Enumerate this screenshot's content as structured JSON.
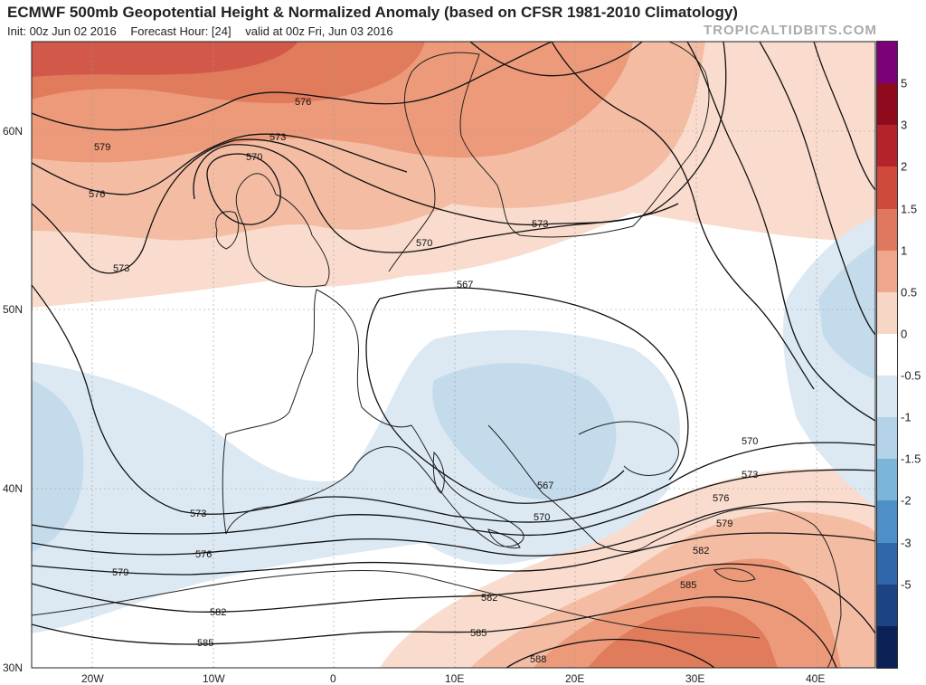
{
  "header": {
    "title": "ECMWF 500mb Geopotential Height & Normalized Anomaly (based on CFSR 1981-2010 Climatology)",
    "init": "Init: 00z Jun 02 2016",
    "forecast_hour": "Forecast Hour: [24]",
    "valid": "valid at 00z Fri, Jun 03 2016",
    "brand": "TROPICALTIDBITS.COM"
  },
  "map": {
    "lat_labels": [
      "60N",
      "50N",
      "40N",
      "30N"
    ],
    "lon_labels": [
      "20W",
      "10W",
      "0",
      "10E",
      "20E",
      "30E",
      "40E"
    ],
    "contour_labels": [
      "576",
      "579",
      "576",
      "573",
      "573",
      "570",
      "570",
      "573",
      "570",
      "567",
      "567",
      "570",
      "573",
      "576",
      "579",
      "582",
      "585",
      "588",
      "573",
      "576",
      "579",
      "582",
      "585",
      "585",
      "582"
    ]
  },
  "colorbar": {
    "labels": [
      "5",
      "3",
      "2",
      "1.5",
      "1",
      "0.5",
      "0",
      "-0.5",
      "-1",
      "-1.5",
      "-2",
      "-3",
      "-5"
    ],
    "colors": [
      "#7a0177",
      "#8e0b1e",
      "#b4232a",
      "#cf4a3b",
      "#e0785f",
      "#eea78c",
      "#f7d6c5",
      "#ffffff",
      "#d8e7f2",
      "#b4d2e8",
      "#7db4d9",
      "#4d8fc6",
      "#2f67aa",
      "#1c4382",
      "#0c2257"
    ]
  }
}
